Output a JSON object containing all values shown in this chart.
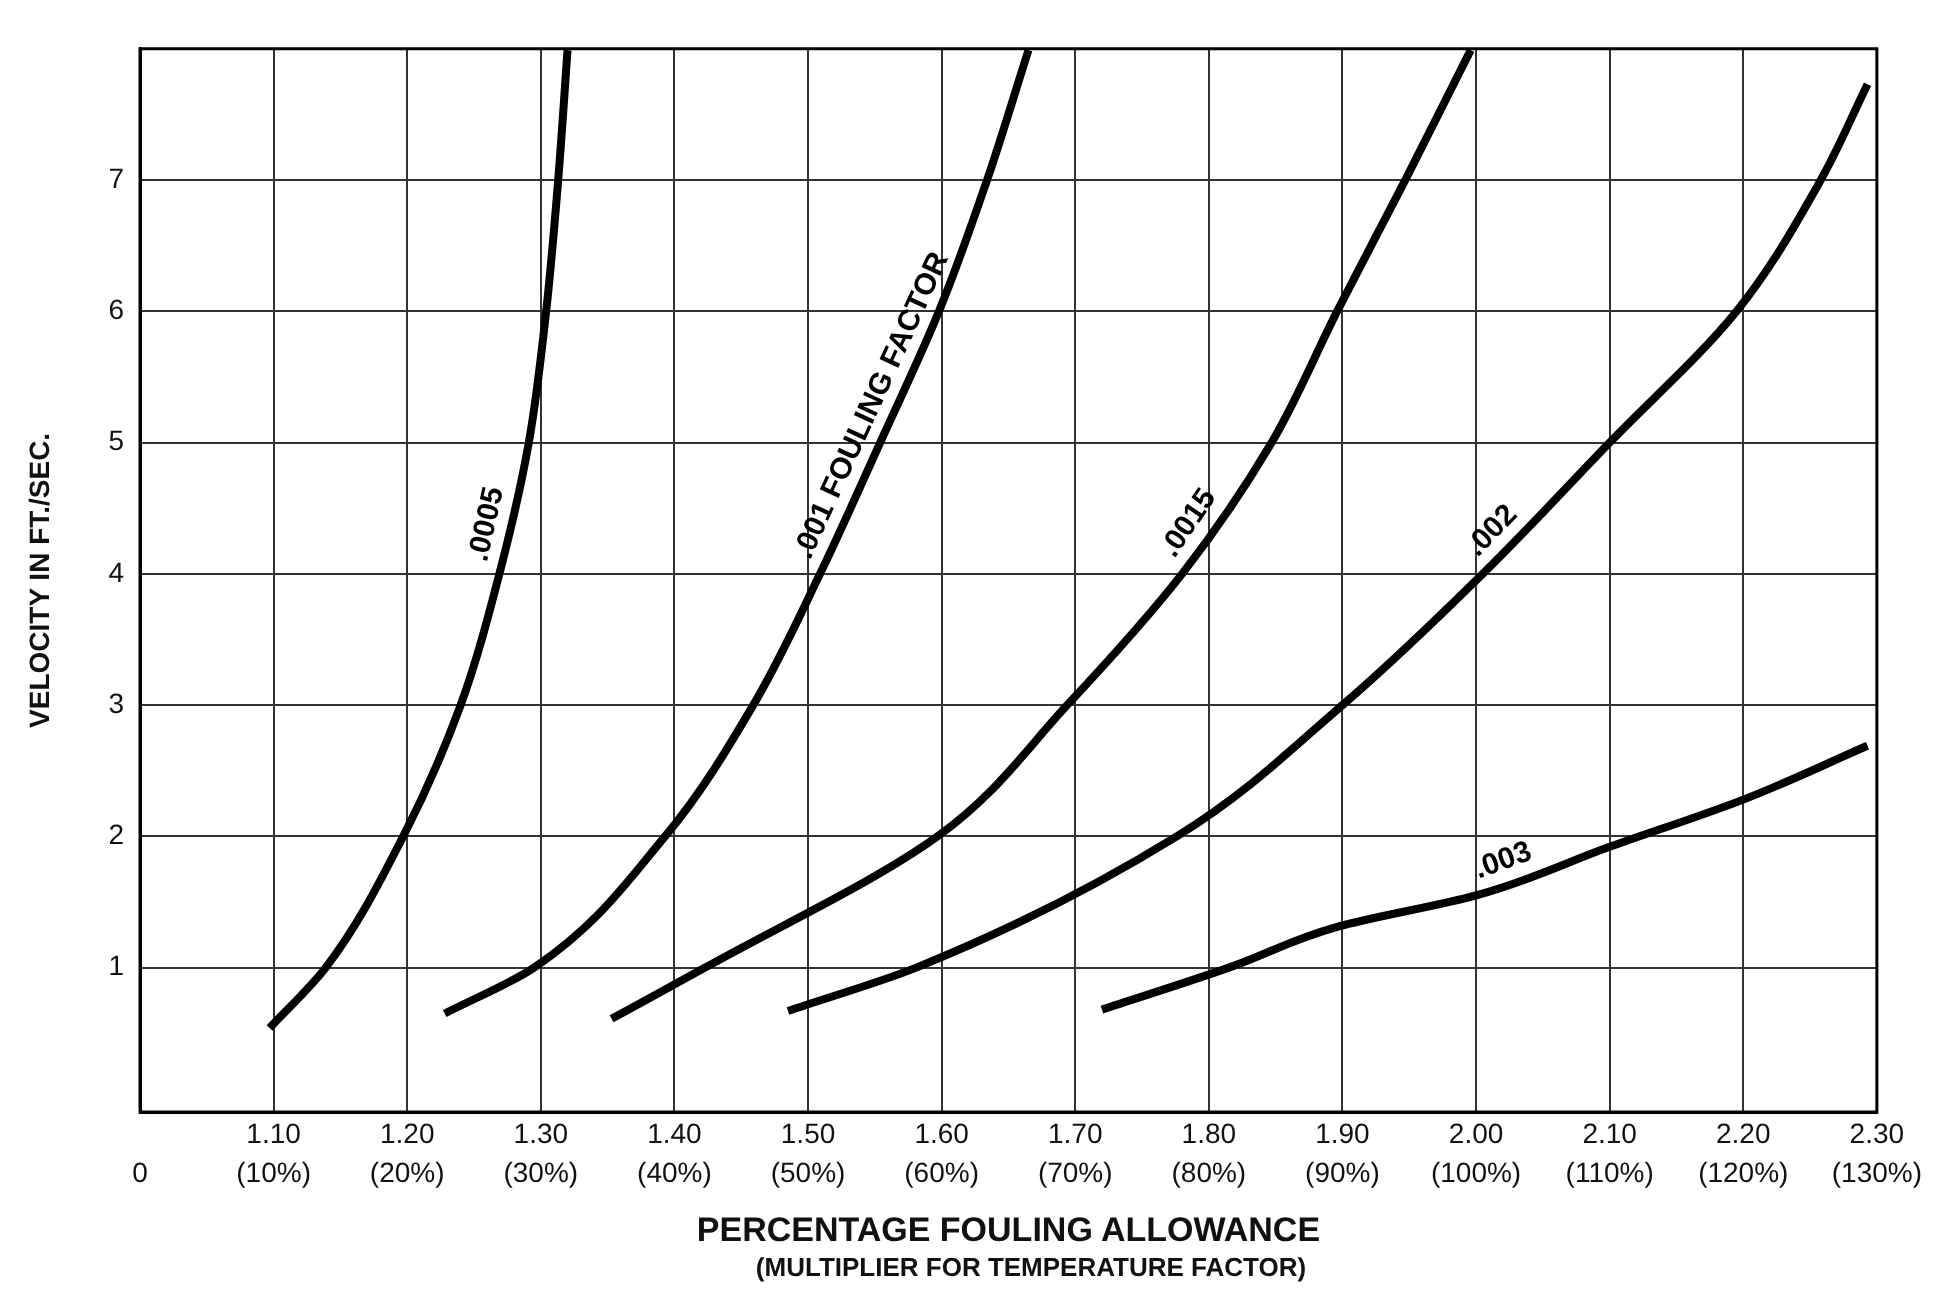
{
  "chart_data": {
    "type": "line",
    "xlabel": "PERCENTAGE FOULING ALLOWANCE",
    "ylabel": "VELOCITY IN FT./SEC.",
    "annotations": [
      "(MULTIPLIER FOR TEMPERATURE FACTOR)"
    ],
    "series": [
      {
        "name": ".0005",
        "color": "#000000",
        "x": [
          1.097,
          1.139,
          1.197,
          1.24,
          1.269,
          1.291,
          1.304,
          1.313,
          1.32
        ],
        "values": [
          0.54,
          1,
          2,
          3,
          4,
          5,
          6,
          7,
          7.99
        ]
      },
      {
        "name": ".001 FOULING FACTOR",
        "color": "#000000",
        "x": [
          1.228,
          1.295,
          1.393,
          1.459,
          1.509,
          1.554,
          1.598,
          1.634,
          1.665
        ],
        "values": [
          0.65,
          1,
          2,
          3,
          4,
          5,
          6,
          7,
          7.99
        ]
      },
      {
        "name": ".0015",
        "color": "#000000",
        "x": [
          1.353,
          1.423,
          1.597,
          1.694,
          1.78,
          1.847,
          1.896,
          1.947,
          1.996
        ],
        "values": [
          0.61,
          1,
          2,
          3,
          4,
          5,
          6,
          7,
          7.99
        ]
      },
      {
        "name": ".002",
        "color": "#000000",
        "x": [
          1.485,
          1.581,
          1.776,
          1.9,
          2.005,
          2.1,
          2.195,
          2.258,
          2.293
        ],
        "values": [
          0.67,
          1,
          2,
          3,
          4,
          5,
          6,
          7,
          7.73
        ]
      },
      {
        "name": ".003",
        "color": "#000000",
        "x": [
          1.72,
          1.815,
          1.896,
          2.0,
          2.1,
          2.2,
          2.293
        ],
        "values": [
          0.68,
          1,
          1.31,
          1.55,
          1.92,
          2.28,
          2.69
        ]
      }
    ],
    "xlim": [
      1.0,
      2.3
    ],
    "ylim": [
      -0.1,
      8
    ],
    "xticks": [
      {
        "value": 1.0,
        "label": null
      },
      {
        "value": 1.1,
        "label": "1.10"
      },
      {
        "value": 1.2,
        "label": "1.20"
      },
      {
        "value": 1.3,
        "label": "1.30"
      },
      {
        "value": 1.4,
        "label": "1.40"
      },
      {
        "value": 1.5,
        "label": "1.50"
      },
      {
        "value": 1.6,
        "label": "1.60"
      },
      {
        "value": 1.7,
        "label": "1.70"
      },
      {
        "value": 1.8,
        "label": "1.80"
      },
      {
        "value": 1.9,
        "label": "1.90"
      },
      {
        "value": 2.0,
        "label": "2.00"
      },
      {
        "value": 2.1,
        "label": "2.10"
      },
      {
        "value": 2.2,
        "label": "2.20"
      },
      {
        "value": 2.3,
        "label": "2.30"
      }
    ],
    "x2lim": [
      0,
      130
    ],
    "x2ticks": [
      0,
      {
        "value": 10,
        "label": "(10%)"
      },
      {
        "value": 20,
        "label": "(20%)"
      },
      {
        "value": 30,
        "label": "(30%)"
      },
      {
        "value": 40,
        "label": "(40%)"
      },
      {
        "value": 50,
        "label": "(50%)"
      },
      {
        "value": 60,
        "label": "(60%)"
      },
      {
        "value": 70,
        "label": "(70%)"
      },
      {
        "value": 80,
        "label": "(80%)"
      },
      {
        "value": 90,
        "label": "(90%)"
      },
      {
        "value": 100,
        "label": "(100%)"
      },
      {
        "value": 110,
        "label": "(110%)"
      },
      {
        "value": 120,
        "label": "(120%)"
      },
      {
        "value": 130,
        "label": "(130%)"
      }
    ],
    "yticks": [
      1,
      2,
      3,
      4,
      5,
      6,
      7
    ],
    "grid": true,
    "legend": false,
    "marker": "none",
    "line_style": "solid"
  }
}
